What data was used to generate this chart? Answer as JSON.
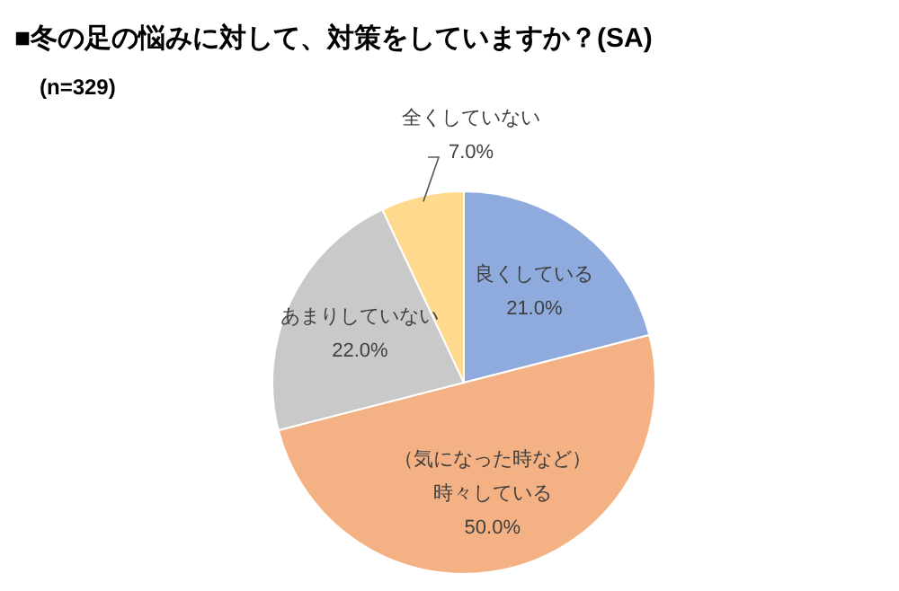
{
  "chart_data": {
    "type": "pie",
    "title": "■冬の足の悩みに対して、対策をしていますか？(SA)",
    "subtitle": "(n=329)",
    "categories": [
      "良くしている",
      "（気になった時など）時々している",
      "あまりしていない",
      "全くしていない"
    ],
    "values": [
      21.0,
      50.0,
      22.0,
      7.0
    ],
    "value_labels": [
      "21.0%",
      "50.0%",
      "22.0%",
      "7.0%"
    ],
    "colors": [
      "#8faadc",
      "#f4b183",
      "#c9c9c9",
      "#ffd98e"
    ],
    "legend": false
  }
}
